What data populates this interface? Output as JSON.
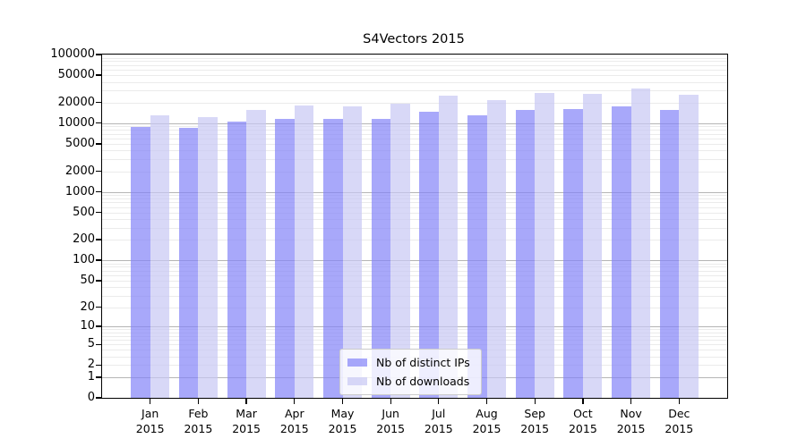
{
  "chart_data": {
    "type": "bar",
    "title": "S4Vectors 2015",
    "categories": [
      "Jan 2015",
      "Feb 2015",
      "Mar 2015",
      "Apr 2015",
      "May 2015",
      "Jun 2015",
      "Jul 2015",
      "Aug 2015",
      "Sep 2015",
      "Oct 2015",
      "Nov 2015",
      "Dec 2015"
    ],
    "series": [
      {
        "name": "Nb of distinct IPs",
        "color": "rgba(131,131,248,0.70)",
        "values": [
          8870,
          8500,
          10600,
          11600,
          11500,
          11700,
          14600,
          13000,
          15400,
          16100,
          17400,
          15400
        ]
      },
      {
        "name": "Nb of downloads",
        "color": "rgba(199,199,244,0.70)",
        "values": [
          12850,
          12300,
          15500,
          17900,
          17400,
          19500,
          25400,
          21800,
          27500,
          26700,
          31900,
          25900
        ]
      }
    ],
    "xlabel": "",
    "ylabel": "",
    "y_scale": "log1p",
    "ylim": [
      0,
      100000
    ],
    "y_ticks": [
      100000,
      50000,
      20000,
      10000,
      5000,
      2000,
      1000,
      500,
      200,
      100,
      50,
      20,
      10,
      5,
      2,
      1,
      0
    ],
    "grid": "on",
    "legend_position": "bottom-center"
  },
  "colors": {
    "grid_major": "#b5b5b5",
    "grid_minor": "#ebebeb",
    "spine": "#000000",
    "background": "#ffffff"
  }
}
